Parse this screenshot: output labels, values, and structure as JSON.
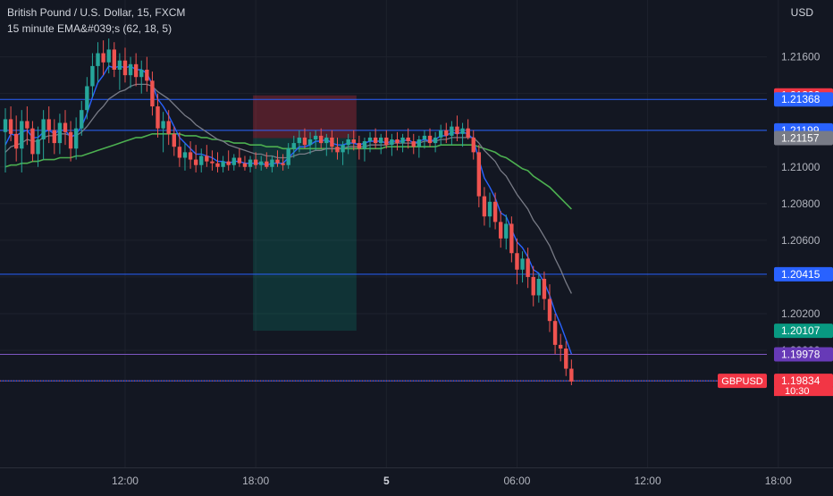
{
  "header": {
    "title": "British Pound / U.S. Dollar, 15, FXCM",
    "indicator": "15 minute EMA&#039;s (62, 18, 5)",
    "currency": "USD"
  },
  "colors": {
    "background": "#131722",
    "up": "#26a69a",
    "down": "#ef5350",
    "ema_fast": "#2962ff",
    "ema_mid": "#787b86",
    "ema_slow": "#4caf50",
    "hline": "#2962ff",
    "hline_purple": "#7e57c2"
  },
  "chart_data": {
    "type": "candlestick",
    "symbol": "GBPUSD",
    "ylim": [
      1.1975,
      1.2172
    ],
    "y_ticks": [
      "1.21600",
      "1.21400",
      "1.21200",
      "1.21000",
      "1.20800",
      "1.20600",
      "1.20400",
      "1.20200",
      "1.20000"
    ],
    "x_ticks": [
      "12:00",
      "18:00",
      "5",
      "06:00",
      "12:00",
      "18:00"
    ],
    "x_tick_times": [
      "2022-12-02 12:00",
      "2022-12-02 18:00",
      "2022-12-05 00:00",
      "2022-12-05 06:00",
      "2022-12-05 12:00",
      "2022-12-05 18:00"
    ],
    "horizontal_lines": [
      {
        "price": 1.21368,
        "label": "1.21368",
        "color": "#2962ff"
      },
      {
        "price": 1.21199,
        "label": "1.21199",
        "color": "#2962ff"
      },
      {
        "price": 1.20415,
        "label": "1.20415",
        "color": "#2962ff"
      },
      {
        "price": 1.19978,
        "label": "1.19978",
        "color": "#7e57c2"
      },
      {
        "price": 1.19834,
        "label": "",
        "color": "#2962ff"
      }
    ],
    "price_labels": [
      {
        "price": 1.2139,
        "label": "1.21390",
        "color": "#f23645"
      },
      {
        "price": 1.21368,
        "label": "1.21368",
        "color": "#2962ff"
      },
      {
        "price": 1.21199,
        "label": "1.21199",
        "color": "#2962ff"
      },
      {
        "price": 1.21157,
        "label": "1.21157",
        "color": "#787b86"
      },
      {
        "price": 1.20415,
        "label": "1.20415",
        "color": "#2962ff"
      },
      {
        "price": 1.20107,
        "label": "1.20107",
        "color": "#089981"
      },
      {
        "price": 1.19978,
        "label": "1.19978",
        "color": "#673ab7"
      },
      {
        "price": 1.19834,
        "label": "1.19834",
        "color": "#f23645"
      }
    ],
    "last_price": {
      "symbol": "GBPUSD",
      "price": "1.19834",
      "countdown": "10:30"
    },
    "position": {
      "type": "short",
      "start": "2022-12-02 18:00",
      "end": "2022-12-02 22:30",
      "stop": 1.2139,
      "entry": 1.21157,
      "target": 1.20107
    },
    "candles": [
      [
        1.2119,
        1.2132,
        1.2097,
        1.2126
      ],
      [
        1.2126,
        1.2133,
        1.2114,
        1.2118
      ],
      [
        1.2118,
        1.2128,
        1.2103,
        1.211
      ],
      [
        1.211,
        1.2131,
        1.2097,
        1.2125
      ],
      [
        1.2125,
        1.2133,
        1.2112,
        1.2121
      ],
      [
        1.2121,
        1.2125,
        1.2103,
        1.2107
      ],
      [
        1.2107,
        1.2122,
        1.21,
        1.2115
      ],
      [
        1.2115,
        1.2131,
        1.2104,
        1.2126
      ],
      [
        1.2126,
        1.2133,
        1.2113,
        1.212
      ],
      [
        1.212,
        1.2126,
        1.2107,
        1.2113
      ],
      [
        1.2113,
        1.2129,
        1.2107,
        1.2124
      ],
      [
        1.2124,
        1.2131,
        1.2112,
        1.2119
      ],
      [
        1.2119,
        1.2125,
        1.2103,
        1.211
      ],
      [
        1.211,
        1.2127,
        1.2104,
        1.2121
      ],
      [
        1.2121,
        1.2136,
        1.2117,
        1.2131
      ],
      [
        1.2131,
        1.2149,
        1.2126,
        1.2144
      ],
      [
        1.2144,
        1.2162,
        1.2138,
        1.2155
      ],
      [
        1.2155,
        1.2168,
        1.2146,
        1.2162
      ],
      [
        1.2162,
        1.2169,
        1.215,
        1.2157
      ],
      [
        1.2157,
        1.217,
        1.2151,
        1.2164
      ],
      [
        1.2164,
        1.2168,
        1.2149,
        1.2153
      ],
      [
        1.2153,
        1.2162,
        1.2142,
        1.2158
      ],
      [
        1.2158,
        1.2165,
        1.2146,
        1.215
      ],
      [
        1.215,
        1.216,
        1.2143,
        1.2156
      ],
      [
        1.2156,
        1.2162,
        1.2144,
        1.2149
      ],
      [
        1.2149,
        1.2158,
        1.214,
        1.2153
      ],
      [
        1.2153,
        1.216,
        1.2141,
        1.2147
      ],
      [
        1.2147,
        1.2152,
        1.2128,
        1.2133
      ],
      [
        1.2133,
        1.214,
        1.2116,
        1.2121
      ],
      [
        1.2121,
        1.213,
        1.2108,
        1.2125
      ],
      [
        1.2125,
        1.2131,
        1.2112,
        1.2118
      ],
      [
        1.2118,
        1.2122,
        1.2106,
        1.2111
      ],
      [
        1.2111,
        1.2119,
        1.21,
        1.2105
      ],
      [
        1.2105,
        1.2113,
        1.2098,
        1.2108
      ],
      [
        1.2108,
        1.2114,
        1.2099,
        1.2104
      ],
      [
        1.2104,
        1.2112,
        1.2097,
        1.2101
      ],
      [
        1.2101,
        1.211,
        1.2097,
        1.2106
      ],
      [
        1.2106,
        1.2112,
        1.21,
        1.2103
      ],
      [
        1.2103,
        1.2109,
        1.2098,
        1.2102
      ],
      [
        1.2102,
        1.2108,
        1.2097,
        1.21
      ],
      [
        1.21,
        1.2106,
        1.2097,
        1.2103
      ],
      [
        1.2103,
        1.2109,
        1.2098,
        1.2101
      ],
      [
        1.2101,
        1.2107,
        1.2098,
        1.2105
      ],
      [
        1.2105,
        1.211,
        1.21,
        1.2102
      ],
      [
        1.2102,
        1.2106,
        1.2098,
        1.21
      ],
      [
        1.21,
        1.2106,
        1.2097,
        1.2104
      ],
      [
        1.2104,
        1.2108,
        1.2099,
        1.2101
      ],
      [
        1.2101,
        1.2106,
        1.2098,
        1.2103
      ],
      [
        1.2103,
        1.2108,
        1.2099,
        1.21
      ],
      [
        1.21,
        1.2106,
        1.2097,
        1.2104
      ],
      [
        1.2104,
        1.2109,
        1.21,
        1.2102
      ],
      [
        1.2102,
        1.2107,
        1.2098,
        1.2101
      ],
      [
        1.2101,
        1.2113,
        1.2099,
        1.211
      ],
      [
        1.211,
        1.2117,
        1.2105,
        1.2113
      ],
      [
        1.2113,
        1.212,
        1.2108,
        1.2116
      ],
      [
        1.2116,
        1.2121,
        1.211,
        1.2112
      ],
      [
        1.2112,
        1.2119,
        1.2107,
        1.2115
      ],
      [
        1.2115,
        1.212,
        1.2109,
        1.2117
      ],
      [
        1.2117,
        1.2121,
        1.211,
        1.2113
      ],
      [
        1.2113,
        1.2118,
        1.2106,
        1.2116
      ],
      [
        1.2116,
        1.212,
        1.2108,
        1.2111
      ],
      [
        1.2111,
        1.2116,
        1.2104,
        1.2108
      ],
      [
        1.2108,
        1.2114,
        1.2101,
        1.2112
      ],
      [
        1.2112,
        1.2118,
        1.2107,
        1.2115
      ],
      [
        1.2115,
        1.212,
        1.2109,
        1.2113
      ],
      [
        1.2113,
        1.2117,
        1.2104,
        1.211
      ],
      [
        1.211,
        1.2116,
        1.2103,
        1.2114
      ],
      [
        1.2114,
        1.2119,
        1.2108,
        1.2116
      ],
      [
        1.2116,
        1.2121,
        1.211,
        1.2113
      ],
      [
        1.2113,
        1.2118,
        1.2107,
        1.2116
      ],
      [
        1.2116,
        1.212,
        1.211,
        1.2112
      ],
      [
        1.2112,
        1.2118,
        1.2106,
        1.2115
      ],
      [
        1.2115,
        1.2119,
        1.2109,
        1.2113
      ],
      [
        1.2113,
        1.2118,
        1.2108,
        1.2116
      ],
      [
        1.2116,
        1.2121,
        1.211,
        1.2114
      ],
      [
        1.2114,
        1.2118,
        1.2107,
        1.2111
      ],
      [
        1.2111,
        1.2117,
        1.2105,
        1.2115
      ],
      [
        1.2115,
        1.212,
        1.211,
        1.2117
      ],
      [
        1.2117,
        1.2121,
        1.2111,
        1.2113
      ],
      [
        1.2113,
        1.2119,
        1.2108,
        1.2116
      ],
      [
        1.2116,
        1.2123,
        1.2112,
        1.212
      ],
      [
        1.212,
        1.2124,
        1.2113,
        1.2117
      ],
      [
        1.2117,
        1.2125,
        1.2112,
        1.2122
      ],
      [
        1.2122,
        1.2128,
        1.2114,
        1.2118
      ],
      [
        1.2118,
        1.2124,
        1.2111,
        1.2121
      ],
      [
        1.2121,
        1.2126,
        1.2115,
        1.2116
      ],
      [
        1.2116,
        1.212,
        1.2104,
        1.2108
      ],
      [
        1.2108,
        1.2112,
        1.2078,
        1.2084
      ],
      [
        1.2084,
        1.2089,
        1.2068,
        1.2073
      ],
      [
        1.2073,
        1.2086,
        1.2067,
        1.2081
      ],
      [
        1.2081,
        1.2086,
        1.2066,
        1.207
      ],
      [
        1.207,
        1.2076,
        1.2056,
        1.2061
      ],
      [
        1.2061,
        1.2074,
        1.2055,
        1.2069
      ],
      [
        1.2069,
        1.2073,
        1.2048,
        1.2053
      ],
      [
        1.2053,
        1.2061,
        1.2036,
        1.2044
      ],
      [
        1.2044,
        1.2054,
        1.2037,
        1.205
      ],
      [
        1.205,
        1.2056,
        1.2034,
        1.204
      ],
      [
        1.204,
        1.2046,
        1.2024,
        1.203
      ],
      [
        1.203,
        1.2042,
        1.2026,
        1.2039
      ],
      [
        1.2039,
        1.2043,
        1.2022,
        1.2028
      ],
      [
        1.2028,
        1.2036,
        1.201,
        1.2016
      ],
      [
        1.2016,
        1.202,
        1.1998,
        1.2003
      ],
      [
        1.2003,
        1.2009,
        1.1994,
        1.2001
      ],
      [
        1.2001,
        1.2005,
        1.1986,
        1.199
      ],
      [
        1.199,
        1.1995,
        1.1981,
        1.1983
      ]
    ],
    "ema_fast_values": [
      1.2112,
      1.2118,
      1.2117,
      1.2119,
      1.212,
      1.2116,
      1.2116,
      1.2119,
      1.212,
      1.2118,
      1.212,
      1.212,
      1.2116,
      1.2118,
      1.2122,
      1.2129,
      1.2138,
      1.2146,
      1.215,
      1.2155,
      1.2154,
      1.2155,
      1.2154,
      1.2155,
      1.2153,
      1.2153,
      1.2151,
      1.2145,
      1.2137,
      1.2133,
      1.2128,
      1.2122,
      1.2116,
      1.2113,
      1.211,
      1.2107,
      1.2107,
      1.2106,
      1.2105,
      1.2103,
      1.2103,
      1.2102,
      1.2103,
      1.2103,
      1.2102,
      1.2102,
      1.2102,
      1.2102,
      1.2101,
      1.2102,
      1.2102,
      1.2102,
      1.2105,
      1.2108,
      1.2111,
      1.2111,
      1.2112,
      1.2114,
      1.2114,
      1.2115,
      1.2113,
      1.2112,
      1.2112,
      1.2113,
      1.2113,
      1.2112,
      1.2113,
      1.2114,
      1.2114,
      1.2114,
      1.2113,
      1.2114,
      1.2114,
      1.2114,
      1.2115,
      1.2113,
      1.2114,
      1.2115,
      1.2114,
      1.2115,
      1.2117,
      1.2117,
      1.2119,
      1.2118,
      1.2119,
      1.2118,
      1.2115,
      1.2104,
      1.2094,
      1.2089,
      1.2083,
      1.2075,
      1.2073,
      1.2066,
      1.2059,
      1.2056,
      1.2051,
      1.2044,
      1.2042,
      1.2037,
      1.203,
      1.2021,
      1.2014,
      1.2006,
      1.1998
    ],
    "ema_mid_values": [
      1.2108,
      1.2111,
      1.2112,
      1.2113,
      1.2115,
      1.2114,
      1.2114,
      1.2116,
      1.2117,
      1.2117,
      1.2118,
      1.2118,
      1.2117,
      1.2117,
      1.2119,
      1.2122,
      1.2126,
      1.213,
      1.2133,
      1.2137,
      1.2139,
      1.2141,
      1.2142,
      1.2144,
      1.2145,
      1.2145,
      1.2145,
      1.2144,
      1.2141,
      1.2139,
      1.2137,
      1.2134,
      1.2131,
      1.2128,
      1.2126,
      1.2123,
      1.2121,
      1.2119,
      1.2117,
      1.2115,
      1.2114,
      1.2112,
      1.2111,
      1.211,
      1.2109,
      1.2108,
      1.2107,
      1.2107,
      1.2106,
      1.2106,
      1.2105,
      1.2105,
      1.2105,
      1.2106,
      1.2107,
      1.2107,
      1.2108,
      1.2109,
      1.2109,
      1.211,
      1.211,
      1.211,
      1.211,
      1.2111,
      1.2111,
      1.2111,
      1.2111,
      1.2112,
      1.2112,
      1.2112,
      1.2112,
      1.2113,
      1.2113,
      1.2113,
      1.2113,
      1.2113,
      1.2113,
      1.2114,
      1.2114,
      1.2114,
      1.2115,
      1.2115,
      1.2116,
      1.2116,
      1.2116,
      1.2116,
      1.2116,
      1.2113,
      1.2109,
      1.2106,
      1.2103,
      1.2098,
      1.2095,
      1.209,
      1.2085,
      1.2081,
      1.2077,
      1.2071,
      1.2067,
      1.2062,
      1.2057,
      1.205,
      1.2044,
      1.2037,
      1.2031
    ],
    "ema_slow_values": [
      1.21,
      1.2101,
      1.2101,
      1.2102,
      1.2102,
      1.2103,
      1.2103,
      1.2104,
      1.2104,
      1.2104,
      1.2105,
      1.2105,
      1.2105,
      1.2106,
      1.2106,
      1.2107,
      1.2108,
      1.2109,
      1.211,
      1.2111,
      1.2112,
      1.2113,
      1.2114,
      1.2115,
      1.2116,
      1.2116,
      1.2117,
      1.2118,
      1.2118,
      1.2118,
      1.2118,
      1.2118,
      1.2118,
      1.2117,
      1.2117,
      1.2117,
      1.2116,
      1.2116,
      1.2115,
      1.2115,
      1.2114,
      1.2114,
      1.2113,
      1.2113,
      1.2113,
      1.2112,
      1.2112,
      1.2112,
      1.2111,
      1.2111,
      1.2111,
      1.211,
      1.211,
      1.211,
      1.211,
      1.211,
      1.211,
      1.211,
      1.211,
      1.211,
      1.211,
      1.211,
      1.211,
      1.211,
      1.211,
      1.211,
      1.211,
      1.211,
      1.211,
      1.211,
      1.2111,
      1.2111,
      1.2111,
      1.2111,
      1.2111,
      1.2111,
      1.2111,
      1.2111,
      1.2111,
      1.2111,
      1.2112,
      1.2112,
      1.2112,
      1.2112,
      1.2112,
      1.2112,
      1.2112,
      1.2111,
      1.211,
      1.2109,
      1.2108,
      1.2106,
      1.2105,
      1.2103,
      1.2101,
      1.2099,
      1.2098,
      1.2095,
      1.2093,
      1.2091,
      1.2089,
      1.2086,
      1.2083,
      1.208,
      1.2077
    ]
  }
}
